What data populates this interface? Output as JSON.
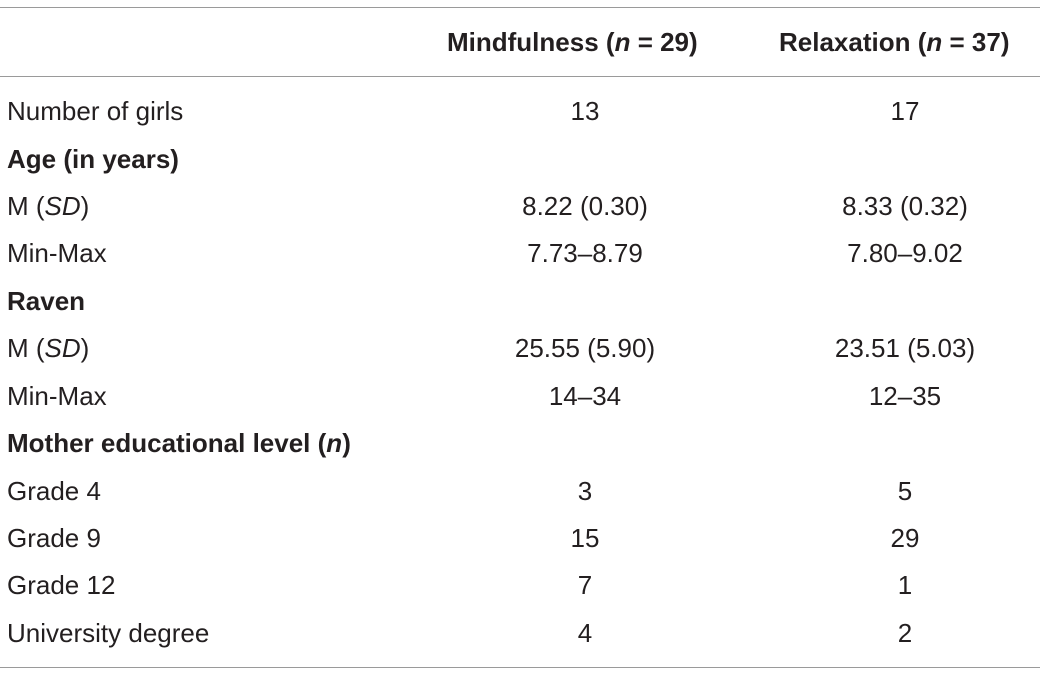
{
  "header": {
    "col1_name": "Mindfulness",
    "col1_n_open": "(",
    "col1_n_symbol": "n",
    "col1_n_rest": " = 29)",
    "col2_name": "Relaxation",
    "col2_n_open": "(",
    "col2_n_symbol": "n",
    "col2_n_rest": " = 37)"
  },
  "rows": [
    {
      "label": "Number of girls",
      "mindfulness": "13",
      "relaxation": "17"
    },
    {
      "label": "Age (in years)"
    },
    {
      "label_prefix": "M (",
      "label_italic": "SD",
      "label_suffix": ")",
      "mindfulness": "8.22 (0.30)",
      "relaxation": "8.33 (0.32)"
    },
    {
      "label": "Min-Max",
      "mindfulness": "7.73–8.79",
      "relaxation": "7.80–9.02"
    },
    {
      "label": "Raven"
    },
    {
      "label_prefix": "M (",
      "label_italic": "SD",
      "label_suffix": ")",
      "mindfulness": "25.55 (5.90)",
      "relaxation": "23.51 (5.03)"
    },
    {
      "label": "Min-Max",
      "mindfulness": "14–34",
      "relaxation": "12–35"
    },
    {
      "label_prefix": "Mother educational level (",
      "label_italic": "n",
      "label_suffix": ")"
    },
    {
      "label": "Grade 4",
      "mindfulness": "3",
      "relaxation": "5"
    },
    {
      "label": "Grade 9",
      "mindfulness": "15",
      "relaxation": "29"
    },
    {
      "label": "Grade 12",
      "mindfulness": "7",
      "relaxation": "1"
    },
    {
      "label": "University degree",
      "mindfulness": "4",
      "relaxation": "2"
    }
  ]
}
